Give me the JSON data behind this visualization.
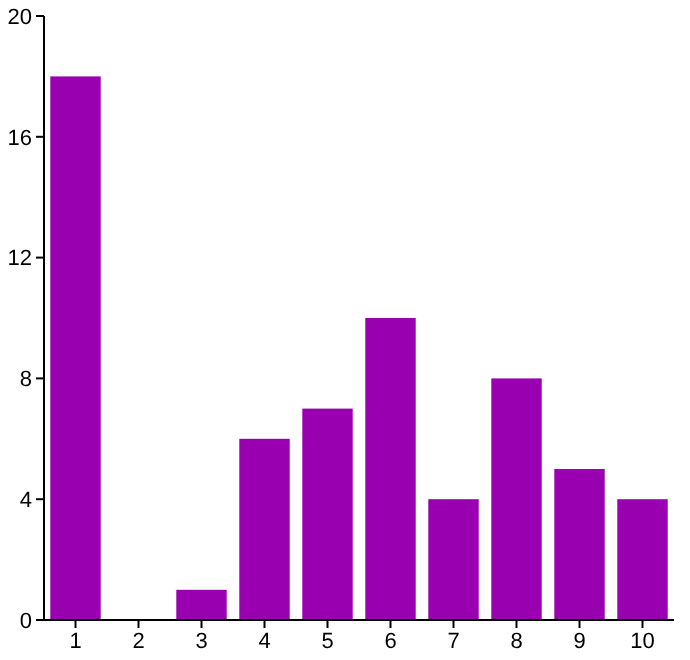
{
  "chart_data": {
    "type": "bar",
    "categories": [
      "1",
      "2",
      "3",
      "4",
      "5",
      "6",
      "7",
      "8",
      "9",
      "10"
    ],
    "values": [
      18,
      0,
      1,
      6,
      7,
      10,
      4,
      8,
      5,
      4
    ],
    "color": "#9900b0",
    "ylim": [
      0,
      20
    ],
    "yticks": [
      0,
      4,
      8,
      12,
      16,
      20
    ],
    "grid": false
  }
}
